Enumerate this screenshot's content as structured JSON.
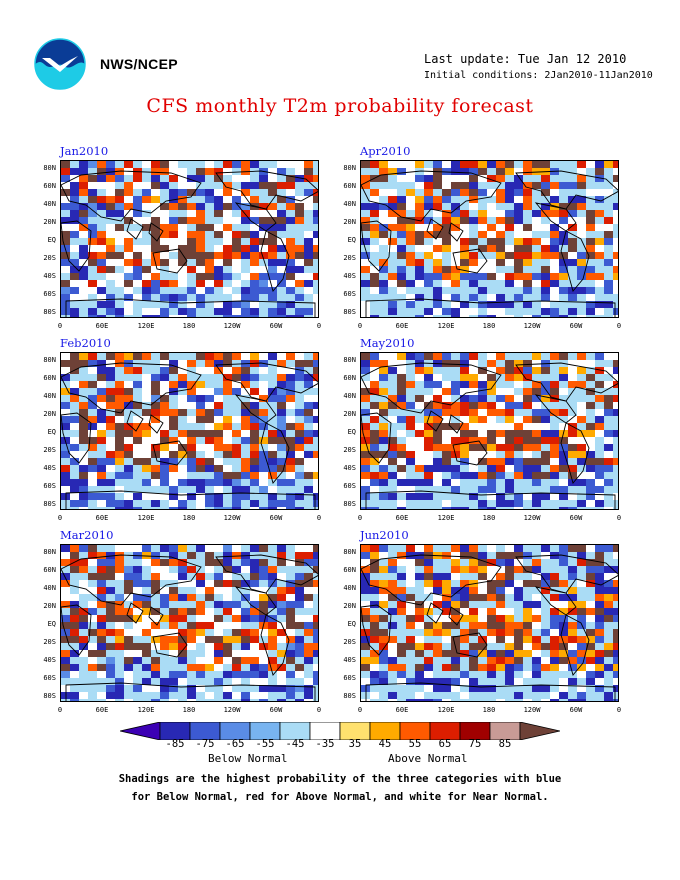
{
  "header": {
    "org": "NWS/NCEP",
    "last_update": "Last update: Tue Jan 12 2010",
    "initial_conditions": "Initial conditions: 2Jan2010-11Jan2010"
  },
  "title": "CFS monthly T2m probability forecast",
  "panels": [
    {
      "label": "Jan2010",
      "seed": 11,
      "warm": 0.55,
      "cold": 0.45
    },
    {
      "label": "Apr2010",
      "seed": 23,
      "warm": 0.62,
      "cold": 0.4
    },
    {
      "label": "Feb2010",
      "seed": 37,
      "warm": 0.58,
      "cold": 0.44
    },
    {
      "label": "May2010",
      "seed": 41,
      "warm": 0.63,
      "cold": 0.38
    },
    {
      "label": "Mar2010",
      "seed": 53,
      "warm": 0.6,
      "cold": 0.42
    },
    {
      "label": "Jun2010",
      "seed": 67,
      "warm": 0.68,
      "cold": 0.34
    }
  ],
  "lat_labels": [
    "80N",
    "60N",
    "40N",
    "20N",
    "EQ",
    "20S",
    "40S",
    "60S",
    "80S"
  ],
  "lon_labels": [
    "0",
    "60E",
    "120E",
    "180",
    "120W",
    "60W",
    "0"
  ],
  "colorbar": {
    "colors": [
      "#2828b4",
      "#3c5ad2",
      "#5a8ce6",
      "#78b4f0",
      "#aadcf5",
      "#ffffff",
      "#ffe16e",
      "#ffaa00",
      "#ff5a00",
      "#dc1e00",
      "#a00000",
      "#c89b96"
    ],
    "left_arrow": "#3c00b4",
    "right_arrow": "#6e4137",
    "ticks": [
      "-85",
      "-75",
      "-65",
      "-55",
      "-45",
      "-35",
      "35",
      "45",
      "55",
      "65",
      "75",
      "85"
    ],
    "below_label": "Below Normal",
    "above_label": "Above Normal"
  },
  "notes": {
    "line1": "Shadings are the highest probability of the three categories with blue",
    "line2": "for Below Normal, red for Above Normal, and white for Near Normal."
  },
  "icons": {
    "logo": "noaa-logo-icon"
  },
  "colors": {
    "title": "#e00000",
    "panel_title": "#1a1ae6",
    "brown_max": "#6e4137"
  }
}
